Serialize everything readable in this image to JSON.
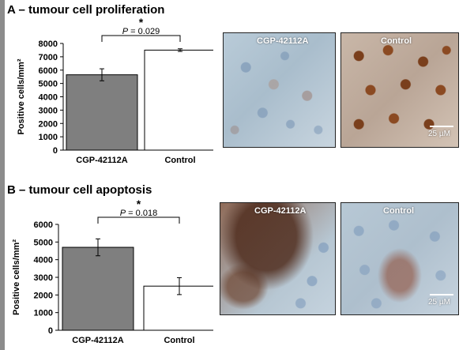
{
  "panels": {
    "a": {
      "title": "A – tumour cell proliferation",
      "images": [
        {
          "label": "CGP-42112A",
          "tissue": "light-blue-stroma"
        },
        {
          "label": "Control",
          "tissue": "brown-nuclei",
          "scale": "25 µM"
        }
      ]
    },
    "b": {
      "title": "B – tumour cell apoptosis",
      "images": [
        {
          "label": "CGP-42112A",
          "tissue": "brown-band",
          "scale": ""
        },
        {
          "label": "Control",
          "tissue": "blue-with-brown-patch",
          "scale": "25 µM"
        }
      ]
    }
  },
  "colors": {
    "treated_bar": "#7f7f7f",
    "control_bar": "#ffffff",
    "stain_brown": "#8b4a22",
    "stain_blue": "#a8c2d6"
  },
  "chart_data": [
    {
      "type": "bar",
      "title": "",
      "xlabel": "",
      "ylabel": "Positive cells/mm²",
      "ylim": [
        0,
        8000
      ],
      "yticks": [
        0,
        1000,
        2000,
        3000,
        4000,
        5000,
        6000,
        7000,
        8000
      ],
      "categories": [
        "CGP-42112A",
        "Control"
      ],
      "values": [
        5650,
        7500
      ],
      "errors": [
        450,
        100
      ],
      "significance": {
        "star": "*",
        "text": "P = 0.029"
      },
      "grid": false
    },
    {
      "type": "bar",
      "title": "",
      "xlabel": "",
      "ylabel": "Positive cells/mm²",
      "ylim": [
        0,
        6000
      ],
      "yticks": [
        0,
        1000,
        2000,
        3000,
        4000,
        5000,
        6000
      ],
      "categories": [
        "CGP-42112A",
        "Control"
      ],
      "values": [
        4700,
        2500
      ],
      "errors": [
        480,
        480
      ],
      "significance": {
        "star": "*",
        "text": "P = 0.018"
      },
      "grid": false
    }
  ]
}
